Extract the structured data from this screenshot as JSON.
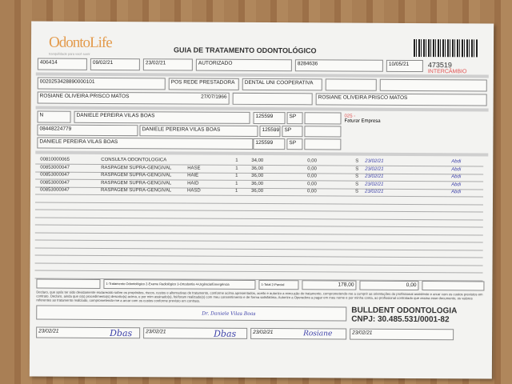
{
  "header": {
    "logo": "OdontoLife",
    "logo_tagline": "tranquilidade para você sorrir",
    "title": "GUIA DE TRATAMENTO ODONTOLÓGICO",
    "guide_number": "473519",
    "badge": "INTERCÂMBIO",
    "badge_color": "#e05050"
  },
  "row1": {
    "registro_ans": "406414",
    "data_emissao": "09/02/21",
    "data_autorizacao": "23/02/21",
    "senha": "AUTORIZADO",
    "guia_principal": "8284636",
    "validade_senha": "10/05/21"
  },
  "beneficiario": {
    "carteira": "0020253428890000101",
    "plano": "POS REDE PRESTADORA",
    "empresa": "DENTAL UNI COOPERATIVA",
    "nome": "ROSIANE OLIVEIRA PRISCO MATOS",
    "nascimento": "27/07/1966",
    "titular": "ROSIANE OLIVEIRA PRISCO MATOS"
  },
  "contratado": {
    "atendimento_rn": "N",
    "solicitante": "DANIELE PEREIRA VILAS BOAS",
    "cro1": "125599",
    "uf1": "SP",
    "codigo_operadora": "08448224779",
    "executante_contratado": "DANIELE PEREIRA VILAS BOAS",
    "cro2": "125599",
    "uf2": "SP",
    "profissional_executante": "DANIELE PEREIRA VILAS BOAS",
    "cro3": "125599",
    "uf3": "SP",
    "note_code": "025 -",
    "note": "Faturar Empresa"
  },
  "procedimentos": [
    {
      "codigo": "00810000065",
      "descricao": "CONSULTA ODONTOLOGICA",
      "dente": "",
      "qtd": "1",
      "us": "34,00",
      "valor": "0,00",
      "aut": "S",
      "data": "23/02/21",
      "assinatura": "Abdi"
    },
    {
      "codigo": "00853000047",
      "descricao": "RASPAGEM SUPRA-GENGIVAL",
      "dente": "HASE",
      "qtd": "1",
      "us": "36,00",
      "valor": "0,00",
      "aut": "S",
      "data": "23/02/21",
      "assinatura": "Abdi"
    },
    {
      "codigo": "00853000047",
      "descricao": "RASPAGEM SUPRA-GENGIVAL",
      "dente": "HAIE",
      "qtd": "1",
      "us": "36,00",
      "valor": "0,00",
      "aut": "S",
      "data": "23/02/21",
      "assinatura": "Abdi"
    },
    {
      "codigo": "00853000047",
      "descricao": "RASPAGEM SUPRA-GENGIVAL",
      "dente": "HAID",
      "qtd": "1",
      "us": "36,00",
      "valor": "0,00",
      "aut": "S",
      "data": "23/02/21",
      "assinatura": "Abdi"
    },
    {
      "codigo": "00853000047",
      "descricao": "RASPAGEM SUPRA-GENGIVAL",
      "dente": "HASD",
      "qtd": "1",
      "us": "36,00",
      "valor": "0,00",
      "aut": "S",
      "data": "23/02/21",
      "assinatura": "Abdi"
    }
  ],
  "totais": {
    "tipo_atendimento": "1-Tratamento Odontológico  2-Exame Radiológico  3-Ortodontia  4-Urgência/Emergência",
    "tipo_faturamento": "1-Total  2-Parcial",
    "total_us": "178,00",
    "valor_total": "0,00"
  },
  "declaracao": "Declaro, que após ter sido devidamente esclarecido sobre os propósitos, riscos, custos e alternativas de tratamento, conforme acima apresentados, aceito e autorizo a execução do tratamento, comprometendo-me a cumprir as orientações do profissional assistente e arcar com os custos previstos em contrato. Declaro, ainda que o(s) procedimento(s) descrito(s) acima, e por mim assinado(s), foi/foram realizado(s) com meu consentimento e de forma satisfatória. Autorizo a Operadora a pagar em meu nome e por minha conta, ao profissional contratado que assina esse documento, os valores referentes ao tratamento realizado, comprometendo-me a arcar com os custos conforme previsto em contrato.",
  "assinaturas": {
    "data1": "23/02/21",
    "data2": "23/02/21",
    "data3": "23/02/21",
    "data4": "23/02/21",
    "stamp_small": "Dr. Daniele Vilas Boas",
    "sig1": "Dbas",
    "sig2": "Dbas",
    "sig3": "Rosiane"
  },
  "stamp": {
    "name": "BULLDENT ODONTOLOGIA",
    "cnpj": "CNPJ: 30.485.531/0001-82"
  }
}
